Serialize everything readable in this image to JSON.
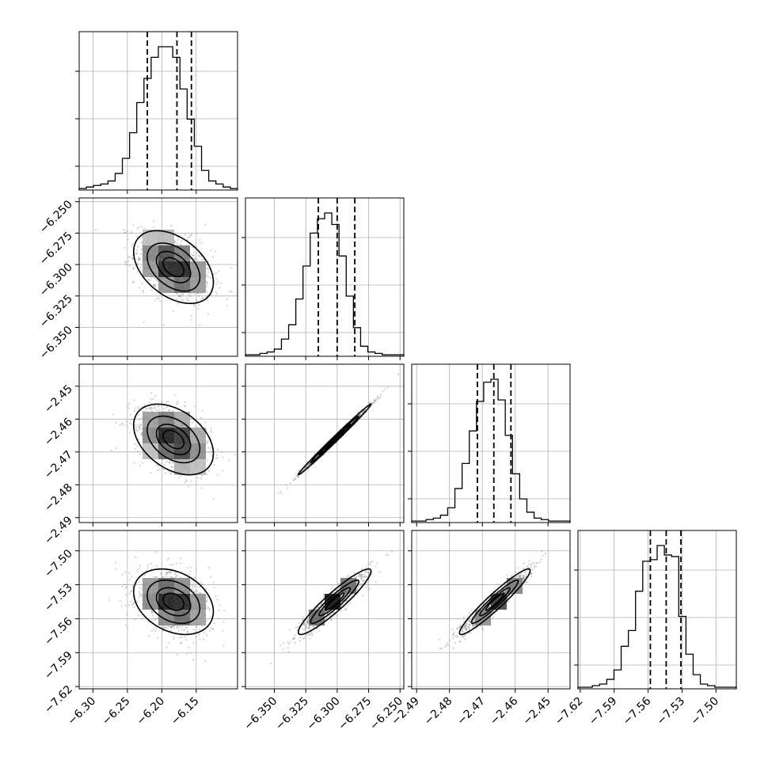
{
  "chart_data": {
    "type": "corner",
    "parameters": [
      {
        "name": "",
        "range": [
          -6.32,
          -6.09
        ],
        "ticks": [
          -6.3,
          -6.25,
          -6.2,
          -6.15
        ],
        "tick_labels": [
          "−6.30",
          "−6.25",
          "−6.20",
          "−6.15"
        ],
        "median": -6.178,
        "q16": -6.221,
        "q84": -6.157
      },
      {
        "name": "",
        "range": [
          -6.373,
          -6.247
        ],
        "ticks": [
          -6.35,
          -6.325,
          -6.3,
          -6.275,
          -6.25
        ],
        "tick_labels": [
          "−6.350",
          "−6.325",
          "−6.300",
          "−6.275",
          "−6.250"
        ],
        "median": -6.3,
        "q16": -6.315,
        "q84": -6.286
      },
      {
        "name": "",
        "range": [
          -2.4915,
          -2.4433
        ],
        "ticks": [
          -2.49,
          -2.48,
          -2.47,
          -2.46,
          -2.45
        ],
        "tick_labels": [
          "−2.49",
          "−2.48",
          "−2.47",
          "−2.46",
          "−2.45"
        ],
        "median": -2.4665,
        "q16": -2.4715,
        "q84": -2.4613
      },
      {
        "name": "",
        "range": [
          -7.622,
          -7.482
        ],
        "ticks": [
          -7.62,
          -7.59,
          -7.56,
          -7.53,
          -7.5
        ],
        "tick_labels": [
          "−7.62",
          "−7.59",
          "−7.56",
          "−7.53",
          "−7.50"
        ],
        "median": -7.544,
        "q16": -7.558,
        "q84": -7.531
      }
    ],
    "histograms": [
      [
        1,
        2,
        3,
        4,
        6,
        11,
        21,
        38,
        58,
        74,
        88,
        95,
        95,
        88,
        67,
        47,
        29,
        13,
        6,
        4,
        2,
        1
      ],
      [
        1,
        1,
        2,
        3,
        5,
        12,
        22,
        40,
        63,
        86,
        96,
        100,
        92,
        70,
        42,
        20,
        7,
        3,
        2,
        1,
        1,
        1
      ],
      [
        1,
        1,
        2,
        3,
        5,
        10,
        23,
        40,
        62,
        82,
        95,
        97,
        83,
        59,
        33,
        16,
        7,
        3,
        2,
        1,
        1,
        1
      ],
      [
        1,
        1,
        2,
        3,
        6,
        12,
        27,
        37,
        62,
        81,
        82,
        91,
        85,
        84,
        46,
        22,
        9,
        3,
        2,
        1,
        1,
        1
      ]
    ],
    "pairs": [
      {
        "row": 1,
        "col": 0,
        "mean": [
          -6.183,
          -6.302
        ],
        "sd": [
          0.028,
          0.014
        ],
        "rho": -0.42
      },
      {
        "row": 2,
        "col": 0,
        "mean": [
          -6.183,
          -2.4662
        ],
        "sd": [
          0.028,
          0.0052
        ],
        "rho": -0.4
      },
      {
        "row": 2,
        "col": 1,
        "mean": [
          -6.302,
          -2.4662
        ],
        "sd": [
          0.014,
          0.0052
        ],
        "rho": 0.995
      },
      {
        "row": 3,
        "col": 0,
        "mean": [
          -6.183,
          -7.545
        ],
        "sd": [
          0.028,
          0.014
        ],
        "rho": -0.3
      },
      {
        "row": 3,
        "col": 1,
        "mean": [
          -6.302,
          -7.545
        ],
        "sd": [
          0.014,
          0.014
        ],
        "rho": 0.93
      },
      {
        "row": 3,
        "col": 2,
        "mean": [
          -2.4662,
          -7.545
        ],
        "sd": [
          0.0052,
          0.014
        ],
        "rho": 0.95
      }
    ],
    "contour_levels_sigma": [
      0.5,
      1.0,
      1.5,
      2.0
    ],
    "quantile_line_style": "dashed",
    "grid": true
  }
}
